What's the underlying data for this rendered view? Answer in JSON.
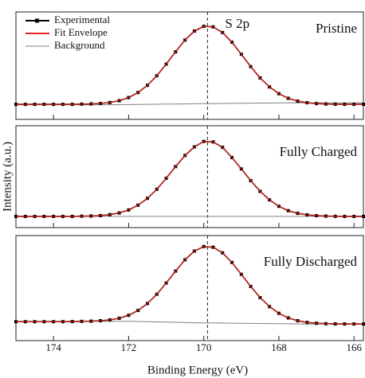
{
  "chart_data": [
    {
      "type": "line",
      "title": "S 2p",
      "label": "Pristine",
      "legend": "upper left",
      "vline": 169.9,
      "x": [
        175,
        174.75,
        174.5,
        174.25,
        174,
        173.75,
        173.5,
        173.25,
        173,
        172.75,
        172.5,
        172.25,
        172,
        171.75,
        171.5,
        171.25,
        171,
        170.75,
        170.5,
        170.25,
        170,
        169.75,
        169.5,
        169.25,
        169,
        168.75,
        168.5,
        168.25,
        168,
        167.75,
        167.5,
        167.25,
        167,
        166.75,
        166.5,
        166.25,
        166,
        165.75
      ],
      "xlim": [
        175,
        165.75
      ],
      "xticks": [
        174,
        172,
        170,
        168,
        166
      ],
      "ylim": [
        0,
        100
      ],
      "series": [
        {
          "name": "Experimental",
          "color": "#000000",
          "values": [
            14,
            14,
            14,
            14,
            14,
            14,
            14,
            14.2,
            14.4,
            14.8,
            15.7,
            17.4,
            20.3,
            25,
            31.7,
            40.6,
            51.4,
            62.9,
            73.8,
            82.2,
            86.6,
            86.1,
            80.8,
            71.8,
            60.6,
            49.1,
            38.6,
            30.2,
            23.9,
            19.6,
            17,
            15.5,
            14.7,
            14.3,
            14.1,
            14,
            14,
            14
          ]
        },
        {
          "name": "Fit Envelope",
          "color": "#e8251c",
          "values": [
            14,
            14,
            14,
            14,
            14,
            14,
            14,
            14.2,
            14.4,
            14.8,
            15.7,
            17.4,
            20.3,
            25,
            31.7,
            40.6,
            51.4,
            62.9,
            73.8,
            82.2,
            86.6,
            86.1,
            80.8,
            71.8,
            60.6,
            49.1,
            38.6,
            30.2,
            23.9,
            19.6,
            17,
            15.5,
            14.7,
            14.3,
            14.1,
            14,
            14,
            14
          ]
        },
        {
          "name": "Background",
          "color": "#808080",
          "values": [
            13.5,
            13.5,
            13.5,
            13.5,
            13.5,
            13.5,
            13.5,
            13.5,
            13.5,
            13.6,
            13.6,
            13.7,
            13.8,
            13.9,
            14,
            14.1,
            14.2,
            14.3,
            14.4,
            14.5,
            14.6,
            14.7,
            14.8,
            14.9,
            15,
            15.1,
            15.2,
            15.2,
            15.3,
            15.3,
            15.3,
            15.3,
            15.3,
            15.3,
            15.3,
            15.3,
            15.3,
            15.3
          ]
        }
      ]
    },
    {
      "type": "line",
      "label": "Fully Charged",
      "vline": 169.9,
      "ylabel": "Intensity (a.u.)",
      "x": [
        175,
        174.75,
        174.5,
        174.25,
        174,
        173.75,
        173.5,
        173.25,
        173,
        172.75,
        172.5,
        172.25,
        172,
        171.75,
        171.5,
        171.25,
        171,
        170.75,
        170.5,
        170.25,
        170,
        169.75,
        169.5,
        169.25,
        169,
        168.75,
        168.5,
        168.25,
        168,
        167.75,
        167.5,
        167.25,
        167,
        166.75,
        166.5,
        166.25,
        166,
        165.75
      ],
      "xlim": [
        175,
        165.75
      ],
      "xticks": [
        174,
        172,
        170,
        168,
        166
      ],
      "ylim": [
        0,
        100
      ],
      "series": [
        {
          "color": "#000000",
          "values": [
            11,
            11,
            11,
            11,
            11,
            11,
            11,
            11.2,
            11.4,
            11.8,
            12.7,
            14.4,
            17.3,
            22,
            28.7,
            37.6,
            48.4,
            59.9,
            70.8,
            79.2,
            84.6,
            84.1,
            78.8,
            68.8,
            57.6,
            46.1,
            35.6,
            27.2,
            20.9,
            16.6,
            14,
            12.5,
            11.7,
            11.3,
            11.1,
            11,
            11,
            11
          ]
        },
        {
          "color": "#e8251c",
          "values": [
            11,
            11,
            11,
            11,
            11,
            11,
            11,
            11.2,
            11.4,
            11.8,
            12.7,
            14.4,
            17.3,
            22,
            28.7,
            37.6,
            48.4,
            59.9,
            70.8,
            79.2,
            84.6,
            84.1,
            78.8,
            68.8,
            57.6,
            46.1,
            35.6,
            27.2,
            20.9,
            16.6,
            14,
            12.5,
            11.7,
            11.3,
            11.1,
            11,
            11,
            11
          ]
        },
        {
          "color": "#808080",
          "values": [
            11,
            11,
            11,
            11,
            11,
            11,
            11,
            11,
            11,
            11,
            11,
            11,
            11,
            11,
            11,
            11,
            11,
            11,
            11,
            11,
            11,
            11,
            11,
            11,
            11,
            11,
            11,
            11,
            11,
            11,
            11,
            11,
            11,
            11,
            11,
            11,
            11,
            11
          ]
        }
      ]
    },
    {
      "type": "line",
      "label": "Fully Discharged",
      "vline": 169.9,
      "xlabel": "Binding Energy (eV)",
      "x": [
        175,
        174.75,
        174.5,
        174.25,
        174,
        173.75,
        173.5,
        173.25,
        173,
        172.75,
        172.5,
        172.25,
        172,
        171.75,
        171.5,
        171.25,
        171,
        170.75,
        170.5,
        170.25,
        170,
        169.75,
        169.5,
        169.25,
        169,
        168.75,
        168.5,
        168.25,
        168,
        167.75,
        167.5,
        167.25,
        167,
        166.75,
        166.5,
        166.25,
        166,
        165.75
      ],
      "xlim": [
        175,
        165.75
      ],
      "xticks": [
        174,
        172,
        170,
        168,
        166
      ],
      "ylim": [
        0,
        100
      ],
      "series": [
        {
          "color": "#000000",
          "values": [
            18,
            18,
            18,
            18,
            18,
            18,
            18.1,
            18.3,
            18.5,
            18.9,
            19.7,
            21.3,
            24.1,
            28.7,
            35.3,
            44.1,
            54.8,
            66.2,
            76.9,
            85.2,
            89.5,
            88.9,
            83.5,
            74.4,
            63.1,
            51.5,
            40.9,
            32.4,
            26,
            21.6,
            18.9,
            17.3,
            16.5,
            16.1,
            15.9,
            15.8,
            15.8,
            15.8
          ]
        },
        {
          "color": "#e8251c",
          "values": [
            18,
            18,
            18,
            18,
            18,
            18,
            18.1,
            18.3,
            18.5,
            18.9,
            19.7,
            21.3,
            24.1,
            28.7,
            35.3,
            44.1,
            54.8,
            66.2,
            76.9,
            85.2,
            89.5,
            88.9,
            83.5,
            74.4,
            63.1,
            51.5,
            40.9,
            32.4,
            26,
            21.6,
            18.9,
            17.3,
            16.5,
            16.1,
            15.9,
            15.8,
            15.8,
            15.8
          ]
        },
        {
          "color": "#808080",
          "values": [
            18,
            18,
            18,
            18,
            18,
            18,
            18.1,
            18.2,
            18.3,
            18.4,
            18.4,
            18.4,
            18.3,
            18.2,
            18,
            17.8,
            17.6,
            17.4,
            17.2,
            17,
            16.9,
            16.8,
            16.7,
            16.6,
            16.5,
            16.4,
            16.3,
            16.2,
            16.1,
            16,
            15.9,
            15.8,
            15.8,
            15.8,
            15.8,
            15.8,
            15.8,
            15.8
          ]
        }
      ]
    }
  ]
}
